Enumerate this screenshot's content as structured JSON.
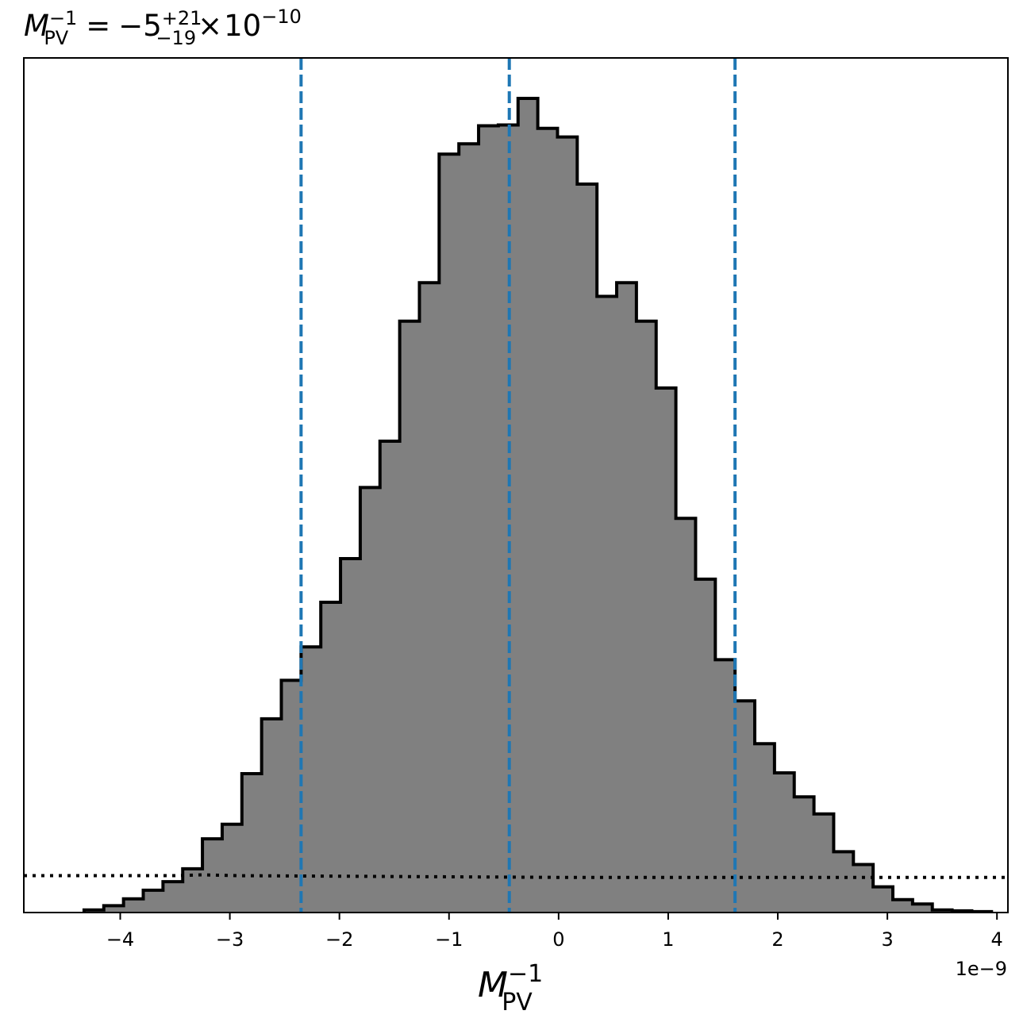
{
  "chart_data": {
    "type": "histogram",
    "title": {
      "symbol": "M",
      "subscript": "PV",
      "superscript": "−1",
      "equals": "=",
      "value": "−5",
      "err_plus": "+21",
      "err_minus": "−19",
      "times": "×",
      "base": "10",
      "exponent": "−10"
    },
    "xlabel": {
      "symbol": "M",
      "subscript": "PV",
      "superscript": "−1"
    },
    "x_offset_text": "1e−9",
    "xlim": [
      -4.88,
      4.1
    ],
    "ylim": [
      0,
      1.0
    ],
    "xticks": [
      -4,
      -3,
      -2,
      -1,
      0,
      1,
      2,
      3,
      4
    ],
    "xtick_labels": [
      "−4",
      "−3",
      "−2",
      "−1",
      "0",
      "1",
      "2",
      "3",
      "4"
    ],
    "bin_edges": [
      -4.33,
      -4.15,
      -3.97,
      -3.79,
      -3.61,
      -3.43,
      -3.25,
      -3.07,
      -2.89,
      -2.71,
      -2.53,
      -2.35,
      -2.17,
      -1.99,
      -1.81,
      -1.63,
      -1.45,
      -1.27,
      -1.09,
      -0.91,
      -0.73,
      -0.55,
      -0.37,
      -0.19,
      -0.01,
      0.17,
      0.35,
      0.53,
      0.71,
      0.89,
      1.07,
      1.25,
      1.43,
      1.61,
      1.79,
      1.97,
      2.15,
      2.33,
      2.51,
      2.69,
      2.87,
      3.05,
      3.23,
      3.41,
      3.59,
      3.77,
      3.95
    ],
    "counts": [
      0.003,
      0.008,
      0.016,
      0.026,
      0.036,
      0.051,
      0.086,
      0.103,
      0.162,
      0.226,
      0.271,
      0.31,
      0.362,
      0.413,
      0.496,
      0.55,
      0.69,
      0.735,
      0.885,
      0.897,
      0.918,
      0.919,
      0.95,
      0.915,
      0.905,
      0.85,
      0.719,
      0.735,
      0.69,
      0.612,
      0.46,
      0.389,
      0.295,
      0.247,
      0.197,
      0.163,
      0.135,
      0.115,
      0.071,
      0.056,
      0.03,
      0.015,
      0.01,
      0.003,
      0.002,
      0.001
    ],
    "vlines": {
      "values": [
        -2.35,
        -0.45,
        1.61
      ],
      "color": "#1f77b4",
      "style": "dashed"
    },
    "prior_line": {
      "x": [
        -4.88,
        -3.5,
        -3.25,
        -2.9,
        0,
        2.6,
        4.1
      ],
      "y": [
        0.043,
        0.043,
        0.044,
        0.043,
        0.041,
        0.041,
        0.041
      ],
      "color": "#000000",
      "style": "dotted"
    },
    "bar_fill": "#808080",
    "bar_edge": "#000000",
    "grid": false,
    "legend": "none"
  }
}
